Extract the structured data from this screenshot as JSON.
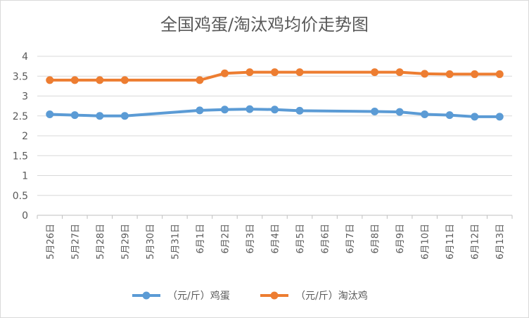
{
  "chart_data": {
    "type": "line",
    "title": "全国鸡蛋/淘汰鸡均价走势图",
    "categories": [
      "5月26日",
      "5月27日",
      "5月28日",
      "5月29日",
      "5月30日",
      "5月31日",
      "6月1日",
      "6月2日",
      "6月3日",
      "6月4日",
      "6月5日",
      "6月6日",
      "6月7日",
      "6月8日",
      "6月9日",
      "6月10日",
      "6月11日",
      "6月12日",
      "6月13日"
    ],
    "ylim": [
      0,
      4
    ],
    "yticks": [
      "0",
      "0.5",
      "1",
      "1.5",
      "2",
      "2.5",
      "3",
      "3.5",
      "4"
    ],
    "grid": true,
    "legend_position": "bottom",
    "series": [
      {
        "name": "（元/斤）鸡蛋",
        "color": "#5B9BD5",
        "values": [
          2.54,
          2.52,
          2.5,
          2.5,
          null,
          null,
          2.64,
          2.66,
          2.67,
          2.66,
          2.63,
          null,
          null,
          2.61,
          2.6,
          2.54,
          2.52,
          2.48,
          2.48
        ]
      },
      {
        "name": "（元/斤）淘汰鸡",
        "color": "#ED7D31",
        "values": [
          3.4,
          3.4,
          3.4,
          3.4,
          null,
          null,
          3.4,
          3.57,
          3.6,
          3.6,
          3.6,
          null,
          null,
          3.6,
          3.6,
          3.56,
          3.55,
          3.55,
          3.55
        ]
      }
    ]
  }
}
